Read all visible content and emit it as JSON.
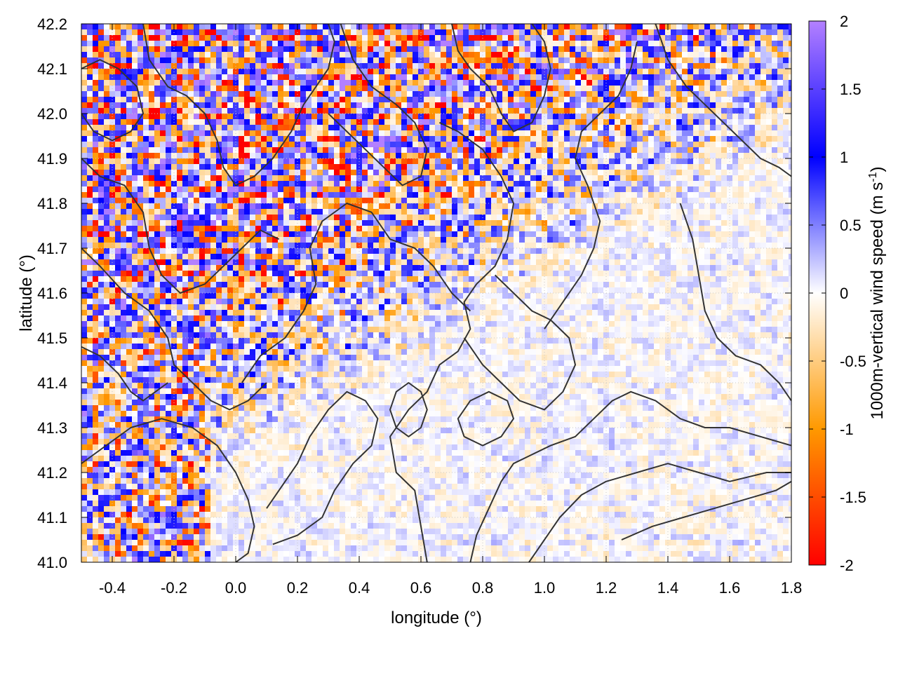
{
  "chart_data": {
    "type": "heatmap",
    "title": "",
    "xlabel": "longitude (°)",
    "ylabel": "latitude (°)",
    "colorbar_label": "1000m-vertical wind speed (m s",
    "colorbar_label_superscript": "-1",
    "colorbar_label_suffix": ")",
    "xlim": [
      -0.5,
      1.8
    ],
    "ylim": [
      41.0,
      42.2
    ],
    "clim": [
      -2,
      2
    ],
    "x_ticks": [
      -0.4,
      -0.2,
      0.0,
      0.2,
      0.4,
      0.6,
      0.8,
      1.0,
      1.2,
      1.4,
      1.6,
      1.8
    ],
    "x_tick_labels": [
      "-0.4",
      "-0.2",
      "0.0",
      "0.2",
      "0.4",
      "0.6",
      "0.8",
      "1.0",
      "1.2",
      "1.4",
      "1.6",
      "1.8"
    ],
    "y_ticks": [
      41.0,
      41.1,
      41.2,
      41.3,
      41.4,
      41.5,
      41.6,
      41.7,
      41.8,
      41.9,
      42.0,
      42.1,
      42.2
    ],
    "y_tick_labels": [
      "41.0",
      "41.1",
      "41.2",
      "41.3",
      "41.4",
      "41.5",
      "41.6",
      "41.7",
      "41.8",
      "41.9",
      "42.0",
      "42.1",
      "42.2"
    ],
    "colorbar_ticks": [
      -2,
      -1.5,
      -1,
      -0.5,
      0,
      0.5,
      1,
      1.5,
      2
    ],
    "colorbar_tick_labels": [
      "-2",
      "-1.5",
      "-1",
      "-0.5",
      "0",
      "0.5",
      "1",
      "1.5",
      "2"
    ],
    "colormap": [
      "#ff0000",
      "#ff9900",
      "#ffffff",
      "#0000ff",
      "#b380ff"
    ],
    "grid": true,
    "contours": [
      [
        [
          0.62,
          41.0
        ],
        [
          0.6,
          41.08
        ],
        [
          0.58,
          41.16
        ],
        [
          0.52,
          41.2
        ],
        [
          0.5,
          41.28
        ],
        [
          0.56,
          41.34
        ],
        [
          0.62,
          41.38
        ],
        [
          0.66,
          41.44
        ],
        [
          0.72,
          41.47
        ],
        [
          0.76,
          41.52
        ],
        [
          0.74,
          41.58
        ],
        [
          0.78,
          41.62
        ],
        [
          0.84,
          41.66
        ],
        [
          0.88,
          41.72
        ],
        [
          0.9,
          41.8
        ],
        [
          0.86,
          41.86
        ],
        [
          0.8,
          41.92
        ],
        [
          0.72,
          41.96
        ],
        [
          0.66,
          41.98
        ]
      ],
      [
        [
          0.76,
          41.0
        ],
        [
          0.78,
          41.06
        ],
        [
          0.82,
          41.12
        ],
        [
          0.86,
          41.18
        ],
        [
          0.9,
          41.22
        ],
        [
          0.96,
          41.24
        ],
        [
          1.02,
          41.26
        ],
        [
          1.1,
          41.28
        ],
        [
          1.16,
          41.32
        ],
        [
          1.22,
          41.36
        ],
        [
          1.28,
          41.38
        ],
        [
          1.36,
          41.36
        ],
        [
          1.44,
          41.32
        ],
        [
          1.52,
          41.3
        ],
        [
          1.6,
          41.3
        ],
        [
          1.7,
          41.28
        ],
        [
          1.8,
          41.26
        ]
      ],
      [
        [
          0.95,
          41.0
        ],
        [
          1.0,
          41.05
        ],
        [
          1.05,
          41.1
        ],
        [
          1.12,
          41.15
        ],
        [
          1.2,
          41.18
        ],
        [
          1.3,
          41.2
        ],
        [
          1.4,
          41.22
        ],
        [
          1.5,
          41.2
        ],
        [
          1.6,
          41.18
        ],
        [
          1.72,
          41.2
        ],
        [
          1.8,
          41.2
        ]
      ],
      [
        [
          1.25,
          41.05
        ],
        [
          1.35,
          41.08
        ],
        [
          1.45,
          41.1
        ],
        [
          1.55,
          41.12
        ],
        [
          1.65,
          41.14
        ],
        [
          1.75,
          41.16
        ],
        [
          1.8,
          41.18
        ]
      ],
      [
        [
          0.1,
          41.12
        ],
        [
          0.16,
          41.18
        ],
        [
          0.2,
          41.22
        ],
        [
          0.24,
          41.28
        ],
        [
          0.3,
          41.34
        ],
        [
          0.36,
          41.38
        ],
        [
          0.42,
          41.36
        ],
        [
          0.46,
          41.32
        ],
        [
          0.44,
          41.26
        ],
        [
          0.38,
          41.22
        ],
        [
          0.32,
          41.16
        ],
        [
          0.28,
          41.1
        ],
        [
          0.2,
          41.06
        ],
        [
          0.12,
          41.04
        ]
      ],
      [
        [
          0.02,
          41.4
        ],
        [
          0.08,
          41.46
        ],
        [
          0.16,
          41.5
        ],
        [
          0.22,
          41.56
        ],
        [
          0.26,
          41.62
        ],
        [
          0.24,
          41.7
        ],
        [
          0.28,
          41.76
        ],
        [
          0.36,
          41.8
        ],
        [
          0.44,
          41.78
        ],
        [
          0.5,
          41.72
        ],
        [
          0.58,
          41.7
        ],
        [
          0.64,
          41.66
        ],
        [
          0.7,
          41.6
        ],
        [
          0.76,
          41.56
        ]
      ],
      [
        [
          -0.5,
          41.7
        ],
        [
          -0.44,
          41.66
        ],
        [
          -0.36,
          41.6
        ],
        [
          -0.28,
          41.56
        ],
        [
          -0.22,
          41.5
        ],
        [
          -0.2,
          41.44
        ],
        [
          -0.14,
          41.4
        ],
        [
          -0.08,
          41.36
        ],
        [
          -0.02,
          41.34
        ],
        [
          0.04,
          41.36
        ],
        [
          0.1,
          41.4
        ]
      ],
      [
        [
          -0.5,
          41.22
        ],
        [
          -0.42,
          41.26
        ],
        [
          -0.34,
          41.3
        ],
        [
          -0.24,
          41.32
        ],
        [
          -0.14,
          41.3
        ],
        [
          -0.06,
          41.26
        ],
        [
          0.0,
          41.2
        ],
        [
          0.04,
          41.14
        ],
        [
          0.06,
          41.08
        ],
        [
          0.04,
          41.02
        ],
        [
          0.0,
          41.0
        ]
      ],
      [
        [
          -0.5,
          41.9
        ],
        [
          -0.44,
          41.86
        ],
        [
          -0.36,
          41.84
        ],
        [
          -0.3,
          41.78
        ],
        [
          -0.28,
          41.7
        ],
        [
          -0.24,
          41.64
        ],
        [
          -0.18,
          41.6
        ],
        [
          -0.1,
          41.62
        ],
        [
          -0.04,
          41.66
        ],
        [
          0.02,
          41.7
        ],
        [
          0.08,
          41.74
        ],
        [
          0.14,
          41.72
        ]
      ],
      [
        [
          -0.3,
          42.2
        ],
        [
          -0.28,
          42.12
        ],
        [
          -0.22,
          42.06
        ],
        [
          -0.16,
          42.04
        ],
        [
          -0.1,
          42.0
        ],
        [
          -0.06,
          41.94
        ],
        [
          -0.04,
          41.88
        ],
        [
          0.0,
          41.84
        ],
        [
          0.06,
          41.86
        ],
        [
          0.12,
          41.9
        ],
        [
          0.18,
          41.96
        ],
        [
          0.22,
          42.02
        ],
        [
          0.26,
          42.06
        ],
        [
          0.3,
          42.1
        ],
        [
          0.32,
          42.16
        ],
        [
          0.3,
          42.2
        ]
      ],
      [
        [
          0.34,
          42.2
        ],
        [
          0.38,
          42.12
        ],
        [
          0.44,
          42.06
        ],
        [
          0.52,
          42.02
        ],
        [
          0.58,
          41.98
        ],
        [
          0.62,
          41.92
        ],
        [
          0.6,
          41.86
        ],
        [
          0.54,
          41.84
        ],
        [
          0.48,
          41.88
        ],
        [
          0.42,
          41.92
        ],
        [
          0.36,
          41.96
        ],
        [
          0.3,
          42.0
        ]
      ],
      [
        [
          0.7,
          42.2
        ],
        [
          0.72,
          42.14
        ],
        [
          0.76,
          42.1
        ],
        [
          0.82,
          42.06
        ],
        [
          0.86,
          42.0
        ],
        [
          0.9,
          41.96
        ],
        [
          0.96,
          41.98
        ],
        [
          1.0,
          42.04
        ],
        [
          1.02,
          42.1
        ],
        [
          1.0,
          42.16
        ],
        [
          0.96,
          42.2
        ]
      ],
      [
        [
          1.0,
          41.52
        ],
        [
          1.06,
          41.58
        ],
        [
          1.12,
          41.64
        ],
        [
          1.16,
          41.7
        ],
        [
          1.18,
          41.76
        ],
        [
          1.14,
          41.84
        ],
        [
          1.1,
          41.9
        ],
        [
          1.12,
          41.96
        ],
        [
          1.18,
          42.0
        ],
        [
          1.24,
          42.04
        ],
        [
          1.28,
          42.1
        ],
        [
          1.3,
          42.16
        ]
      ],
      [
        [
          1.44,
          41.8
        ],
        [
          1.48,
          41.72
        ],
        [
          1.5,
          41.64
        ],
        [
          1.52,
          41.56
        ],
        [
          1.56,
          41.5
        ],
        [
          1.62,
          41.46
        ],
        [
          1.7,
          41.44
        ],
        [
          1.76,
          41.4
        ],
        [
          1.8,
          41.36
        ]
      ],
      [
        [
          1.36,
          42.2
        ],
        [
          1.4,
          42.12
        ],
        [
          1.46,
          42.06
        ],
        [
          1.52,
          42.02
        ],
        [
          1.58,
          41.98
        ],
        [
          1.64,
          41.94
        ],
        [
          1.7,
          41.9
        ],
        [
          1.76,
          41.88
        ],
        [
          1.8,
          41.86
        ]
      ],
      [
        [
          0.74,
          41.5
        ],
        [
          0.8,
          41.44
        ],
        [
          0.86,
          41.4
        ],
        [
          0.92,
          41.36
        ],
        [
          1.0,
          41.34
        ],
        [
          1.06,
          41.38
        ],
        [
          1.1,
          41.44
        ],
        [
          1.08,
          41.5
        ],
        [
          1.02,
          41.54
        ],
        [
          0.96,
          41.56
        ],
        [
          0.9,
          41.6
        ],
        [
          0.84,
          41.64
        ]
      ],
      [
        [
          0.52,
          41.3
        ],
        [
          0.56,
          41.28
        ],
        [
          0.6,
          41.3
        ],
        [
          0.62,
          41.34
        ],
        [
          0.6,
          41.38
        ],
        [
          0.56,
          41.4
        ],
        [
          0.52,
          41.38
        ],
        [
          0.5,
          41.34
        ],
        [
          0.52,
          41.3
        ]
      ],
      [
        [
          0.74,
          41.28
        ],
        [
          0.8,
          41.26
        ],
        [
          0.86,
          41.28
        ],
        [
          0.9,
          41.32
        ],
        [
          0.88,
          41.36
        ],
        [
          0.82,
          41.38
        ],
        [
          0.76,
          41.36
        ],
        [
          0.72,
          41.32
        ],
        [
          0.74,
          41.28
        ]
      ],
      [
        [
          -0.5,
          42.0
        ],
        [
          -0.46,
          41.96
        ],
        [
          -0.4,
          41.94
        ],
        [
          -0.34,
          41.96
        ],
        [
          -0.3,
          42.0
        ],
        [
          -0.32,
          42.06
        ],
        [
          -0.38,
          42.1
        ],
        [
          -0.44,
          42.12
        ],
        [
          -0.5,
          42.1
        ]
      ],
      [
        [
          -0.5,
          41.48
        ],
        [
          -0.44,
          41.46
        ],
        [
          -0.38,
          41.42
        ],
        [
          -0.34,
          41.38
        ],
        [
          -0.3,
          41.36
        ],
        [
          -0.26,
          41.38
        ],
        [
          -0.22,
          41.4
        ]
      ]
    ]
  }
}
